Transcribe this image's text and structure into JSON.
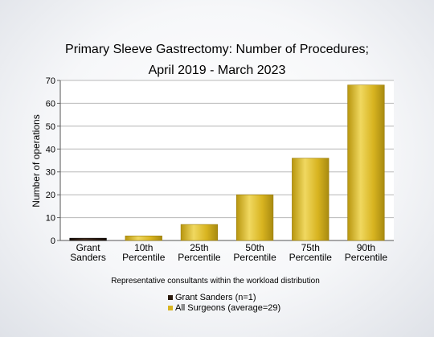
{
  "chart_data": {
    "type": "bar",
    "title_lines": [
      "Primary Sleeve Gastrectomy: Number of Procedures;",
      "April 2019 - March 2023"
    ],
    "categories": [
      [
        "Grant",
        "Sanders"
      ],
      [
        "10th",
        "Percentile"
      ],
      [
        "25th",
        "Percentile"
      ],
      [
        "50th",
        "Percentile"
      ],
      [
        "75th",
        "Percentile"
      ],
      [
        "90th",
        "Percentile"
      ]
    ],
    "values": [
      1,
      2,
      7,
      20,
      36,
      68
    ],
    "highlight_index": 0,
    "ylabel": "Number of operations",
    "xlabel": "Representative consultants within the workload distribution",
    "ylim": [
      0,
      70
    ],
    "yticks": [
      0,
      10,
      20,
      30,
      40,
      50,
      60,
      70
    ],
    "grid": true,
    "legend_position": "bottom-center",
    "legend": [
      {
        "label": "Grant Sanders (n=1)",
        "color": "#2a1a0e"
      },
      {
        "label": "All Surgeons (average=29)",
        "color": "#d8b420"
      }
    ],
    "colors": {
      "bar": "#d8b420",
      "bar_light": "#f2dd6e",
      "bar_dark": "#a88a10",
      "highlight": "#2a1a0e"
    }
  }
}
